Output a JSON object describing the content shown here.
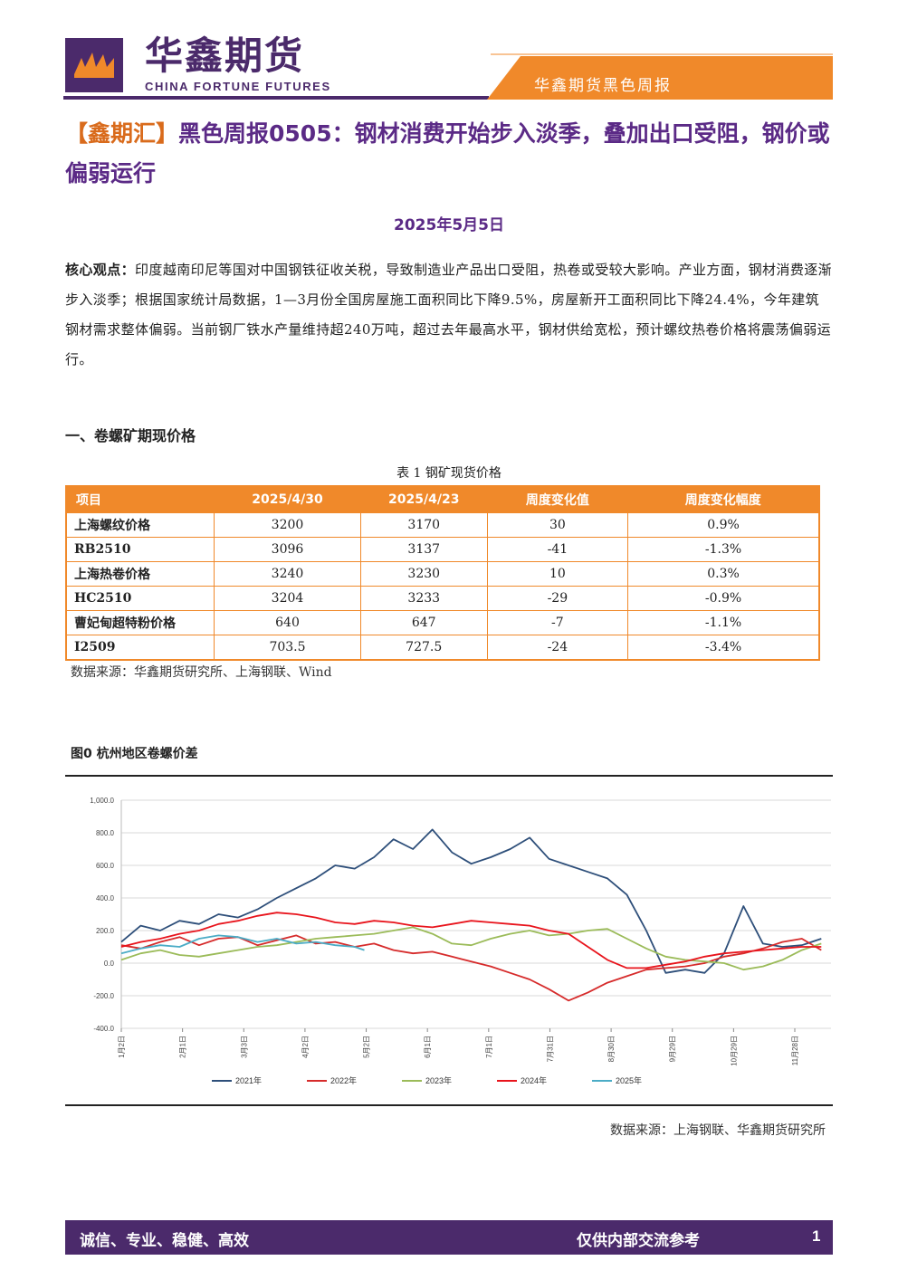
{
  "header": {
    "brand_cn": "华鑫期货",
    "brand_en": "CHINA FORTUNE FUTURES",
    "tag": "华鑫期货黑色周报",
    "colors": {
      "purple": "#4b2a6b",
      "orange": "#f0892a"
    }
  },
  "title": {
    "bracket": "【鑫期汇】",
    "text": "黑色周报0505：钢材消费开始步入淡季，叠加出口受阻，钢价或偏弱运行"
  },
  "date": "2025年5月5日",
  "summary": {
    "label": "核心观点：",
    "text": "印度越南印尼等国对中国钢铁征收关税，导致制造业产品出口受阻，热卷或受较大影响。产业方面，钢材消费逐渐步入淡季；根据国家统计局数据，1—3月份全国房屋施工面积同比下降9.5%，房屋新开工面积同比下降24.4%，今年建筑钢材需求整体偏弱。当前钢厂铁水产量维持超240万吨，超过去年最高水平，钢材供给宽松，预计螺纹热卷价格将震荡偏弱运行。"
  },
  "section1": "一、卷螺矿期现价格",
  "table": {
    "caption": "表 1 钢矿现货价格",
    "headers": [
      "项目",
      "2025/4/30",
      "2025/4/23",
      "周度变化值",
      "周度变化幅度"
    ],
    "rows": [
      [
        "上海螺纹价格",
        "3200",
        "3170",
        "30",
        "0.9%"
      ],
      [
        "RB2510",
        "3096",
        "3137",
        "-41",
        "-1.3%"
      ],
      [
        "上海热卷价格",
        "3240",
        "3230",
        "10",
        "0.3%"
      ],
      [
        "HC2510",
        "3204",
        "3233",
        "-29",
        "-0.9%"
      ],
      [
        "曹妃甸超特粉价格",
        "640",
        "647",
        "-7",
        "-1.1%"
      ],
      [
        "I2509",
        "703.5",
        "727.5",
        "-24",
        "-3.4%"
      ]
    ],
    "source": "数据来源：华鑫期货研究所、上海钢联、Wind"
  },
  "figure": {
    "title": "图0  杭州地区卷螺价差",
    "source": "数据来源：上海钢联、华鑫期货研究所"
  },
  "chart_data": {
    "type": "line",
    "title": "",
    "xlabel": "",
    "ylabel": "",
    "ylim": [
      -400,
      1000
    ],
    "y_ticks": [
      "1,000.0",
      "800.0",
      "600.0",
      "400.0",
      "200.0",
      "0.0",
      "-200.0",
      "-400.0"
    ],
    "x_ticks": [
      "1月2日",
      "2月1日",
      "3月3日",
      "4月2日",
      "5月2日",
      "6月1日",
      "7月1日",
      "7月31日",
      "8月30日",
      "9月29日",
      "10月29日",
      "11月28日"
    ],
    "grid": true,
    "legend_position": "bottom",
    "series": [
      {
        "name": "2021年",
        "color": "#2e4f7a",
        "x": [
          0,
          10,
          20,
          30,
          40,
          50,
          60,
          70,
          80,
          90,
          100,
          110,
          120,
          130,
          140,
          150,
          160,
          170,
          180,
          190,
          200,
          210,
          220,
          230,
          240,
          250,
          260,
          270,
          280,
          290,
          300,
          310,
          320,
          330,
          340,
          350,
          360
        ],
        "values": [
          130,
          230,
          200,
          260,
          240,
          300,
          280,
          330,
          400,
          460,
          520,
          600,
          580,
          650,
          760,
          700,
          820,
          680,
          610,
          650,
          700,
          770,
          640,
          600,
          560,
          520,
          420,
          200,
          -60,
          -40,
          -60,
          60,
          350,
          120,
          100,
          110,
          150
        ]
      },
      {
        "name": "2022年",
        "color": "#d62b2b",
        "x": [
          0,
          10,
          20,
          30,
          40,
          50,
          60,
          70,
          80,
          90,
          100,
          110,
          120,
          130,
          140,
          150,
          160,
          170,
          180,
          190,
          200,
          210,
          220,
          230,
          240,
          250,
          260,
          270,
          280,
          290,
          300,
          310,
          320,
          330,
          340,
          350,
          360
        ],
        "values": [
          110,
          90,
          130,
          160,
          110,
          150,
          160,
          110,
          140,
          170,
          120,
          130,
          100,
          120,
          80,
          60,
          70,
          40,
          10,
          -20,
          -60,
          -100,
          -160,
          -230,
          -180,
          -120,
          -80,
          -40,
          -30,
          -20,
          0,
          40,
          60,
          90,
          130,
          150,
          80
        ]
      },
      {
        "name": "2023年",
        "color": "#9bbb59",
        "x": [
          0,
          10,
          20,
          30,
          40,
          50,
          60,
          70,
          80,
          90,
          100,
          110,
          120,
          130,
          140,
          150,
          160,
          170,
          180,
          190,
          200,
          210,
          220,
          230,
          240,
          250,
          260,
          270,
          280,
          290,
          300,
          310,
          320,
          330,
          340,
          350,
          360
        ],
        "values": [
          20,
          60,
          80,
          50,
          40,
          60,
          80,
          100,
          110,
          130,
          150,
          160,
          170,
          180,
          200,
          220,
          180,
          120,
          110,
          150,
          180,
          200,
          170,
          180,
          200,
          210,
          150,
          90,
          40,
          20,
          10,
          0,
          -40,
          -20,
          20,
          80,
          120
        ]
      },
      {
        "name": "2024年",
        "color": "#e8141c",
        "x": [
          0,
          10,
          20,
          30,
          40,
          50,
          60,
          70,
          80,
          90,
          100,
          110,
          120,
          130,
          140,
          150,
          160,
          170,
          180,
          190,
          200,
          210,
          220,
          230,
          240,
          250,
          260,
          270,
          280,
          290,
          300,
          310,
          320,
          330,
          340,
          350,
          360
        ],
        "values": [
          100,
          130,
          150,
          180,
          200,
          240,
          260,
          290,
          310,
          300,
          280,
          250,
          240,
          260,
          250,
          230,
          220,
          240,
          260,
          250,
          240,
          230,
          200,
          180,
          100,
          20,
          -30,
          -30,
          -10,
          10,
          40,
          60,
          70,
          80,
          90,
          100,
          100
        ]
      },
      {
        "name": "2025年",
        "color": "#4bacc6",
        "x": [
          0,
          10,
          20,
          30,
          40,
          50,
          60,
          70,
          80,
          90,
          100,
          110,
          120,
          125
        ],
        "values": [
          60,
          90,
          110,
          100,
          150,
          170,
          160,
          130,
          150,
          120,
          130,
          110,
          100,
          80
        ]
      }
    ]
  },
  "footer": {
    "left": "诚信、专业、稳健、高效",
    "right": "仅供内部交流参考",
    "page": "1"
  }
}
